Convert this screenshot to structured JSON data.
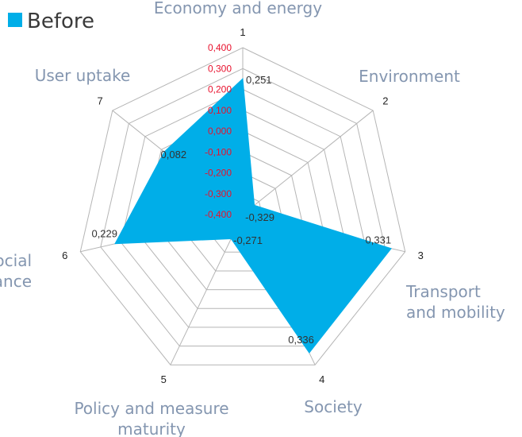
{
  "chart_data": {
    "type": "radar",
    "series": [
      {
        "name": "Before",
        "color": "#00aee8",
        "values": [
          0.251,
          -0.329,
          0.331,
          0.336,
          -0.271,
          0.229,
          0.082
        ]
      }
    ],
    "categories": [
      {
        "number": "1",
        "lines": [
          "Economy and energy"
        ]
      },
      {
        "number": "2",
        "lines": [
          "Environment"
        ]
      },
      {
        "number": "3",
        "lines": [
          "Transport",
          "and mobility"
        ]
      },
      {
        "number": "4",
        "lines": [
          "Society"
        ]
      },
      {
        "number": "5",
        "lines": [
          "Policy and measure",
          "maturity"
        ]
      },
      {
        "number": "6",
        "lines": [
          "Social",
          "acceptance"
        ]
      },
      {
        "number": "7",
        "lines": [
          "User uptake"
        ]
      }
    ],
    "data_labels": [
      "0,251",
      "-0,329",
      "0,331",
      "0,336",
      "-0,271",
      "0,229",
      "0,082"
    ],
    "rlim": [
      -0.4,
      0.4
    ],
    "ticks": [
      "-0,400",
      "-0,300",
      "-0,200",
      "-0,100",
      "0,000",
      "0,100",
      "0,200",
      "0,300",
      "0,400"
    ],
    "legend": {
      "position": "top-left"
    },
    "colors": {
      "grid": "#b5b5b5",
      "tick_text": "#e8112d",
      "axis_text": "#8496b0"
    }
  }
}
